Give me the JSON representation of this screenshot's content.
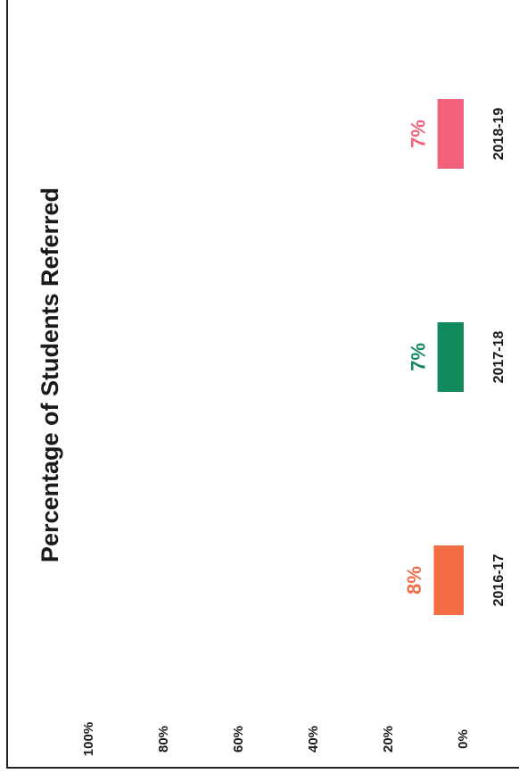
{
  "chart_data": {
    "type": "bar",
    "title": "Percentage of Students Referred",
    "categories": [
      "2016-17",
      "2017-18",
      "2018-19"
    ],
    "series": [
      {
        "name": null,
        "colors": [
          "#f26d45",
          "#128a5c",
          "#f2617b"
        ],
        "values": [
          8,
          7,
          7
        ],
        "value_labels": [
          "8%",
          "7%",
          "7%"
        ]
      }
    ],
    "ylim": [
      0,
      100
    ],
    "yticks": [
      {
        "value": 0,
        "label": "0%"
      },
      {
        "value": 20,
        "label": "20%"
      },
      {
        "value": 40,
        "label": "40%"
      },
      {
        "value": 60,
        "label": "60%"
      },
      {
        "value": 80,
        "label": "80%"
      },
      {
        "value": 100,
        "label": "100%"
      }
    ],
    "grid": false
  }
}
